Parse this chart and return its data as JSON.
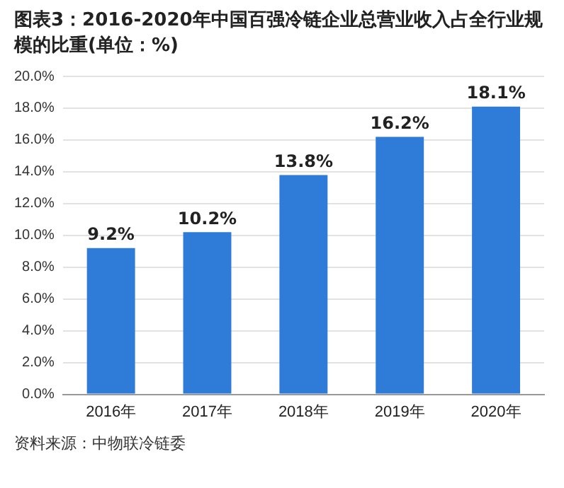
{
  "chart_data": {
    "type": "bar",
    "title": "图表3：2016-2020年中国百强冷链企业总营业收入占全行业规模的比重(单位：%)",
    "categories": [
      "2016年",
      "2017年",
      "2018年",
      "2019年",
      "2020年"
    ],
    "values": [
      9.2,
      10.2,
      13.8,
      16.2,
      18.1
    ],
    "value_labels": [
      "9.2%",
      "10.2%",
      "13.8%",
      "16.2%",
      "18.1%"
    ],
    "color": "#2f7bd8",
    "ylim": [
      0,
      20
    ],
    "yticks": [
      {
        "value": 0,
        "label": "0.0%"
      },
      {
        "value": 2,
        "label": "2.0%"
      },
      {
        "value": 4,
        "label": "4.0%"
      },
      {
        "value": 6,
        "label": "6.0%"
      },
      {
        "value": 8,
        "label": "8.0%"
      },
      {
        "value": 10,
        "label": "10.0%"
      },
      {
        "value": 12,
        "label": "12.0%"
      },
      {
        "value": 14,
        "label": "14.0%"
      },
      {
        "value": 16,
        "label": "16.0%"
      },
      {
        "value": 18,
        "label": "18.0%"
      },
      {
        "value": 20,
        "label": "20.0%"
      }
    ],
    "grid": "y",
    "annotations": [
      "资料来源：中物联冷链委"
    ]
  }
}
